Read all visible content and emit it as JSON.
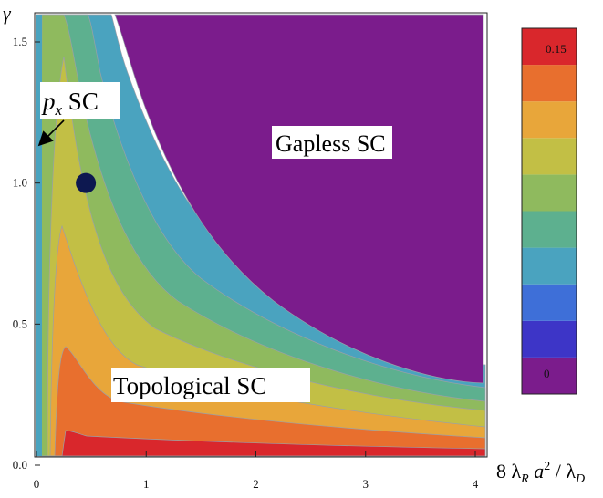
{
  "chart_data": {
    "type": "contour",
    "xlabel_parts": {
      "main": "8 λ",
      "sub1": "R",
      "mid": " a",
      "sup": "2",
      "slash": " / λ",
      "sub2": "D"
    },
    "ylabel": "γ",
    "xlim": [
      0,
      4
    ],
    "ylim": [
      0,
      1.6
    ],
    "x_ticks": [
      "0",
      "1",
      "2",
      "3",
      "4"
    ],
    "y_ticks": [
      "0.0",
      "0.5",
      "1.0",
      "1.5"
    ],
    "colorbar": {
      "min_label": "0",
      "max_label": "0.15",
      "colors": [
        "#7b1c8c",
        "#3d35c7",
        "#3e6fd8",
        "#4aa3bf",
        "#5db08f",
        "#8fba5e",
        "#c2bf45",
        "#e8a63a",
        "#e86f2e",
        "#d9272c"
      ]
    },
    "regions": [
      {
        "name": "Gapless SC",
        "color": "#7b1c8c",
        "level": 0
      },
      {
        "name": "Topological SC"
      },
      {
        "name": "p_x SC"
      }
    ],
    "marker": {
      "x": 0.45,
      "y": 1.0,
      "color": "#0d1850"
    },
    "annotations": {
      "gapless": "Gapless SC",
      "topological": "Topological SC",
      "px_main": "p",
      "px_sub": "x",
      "px_rest": " SC"
    }
  }
}
